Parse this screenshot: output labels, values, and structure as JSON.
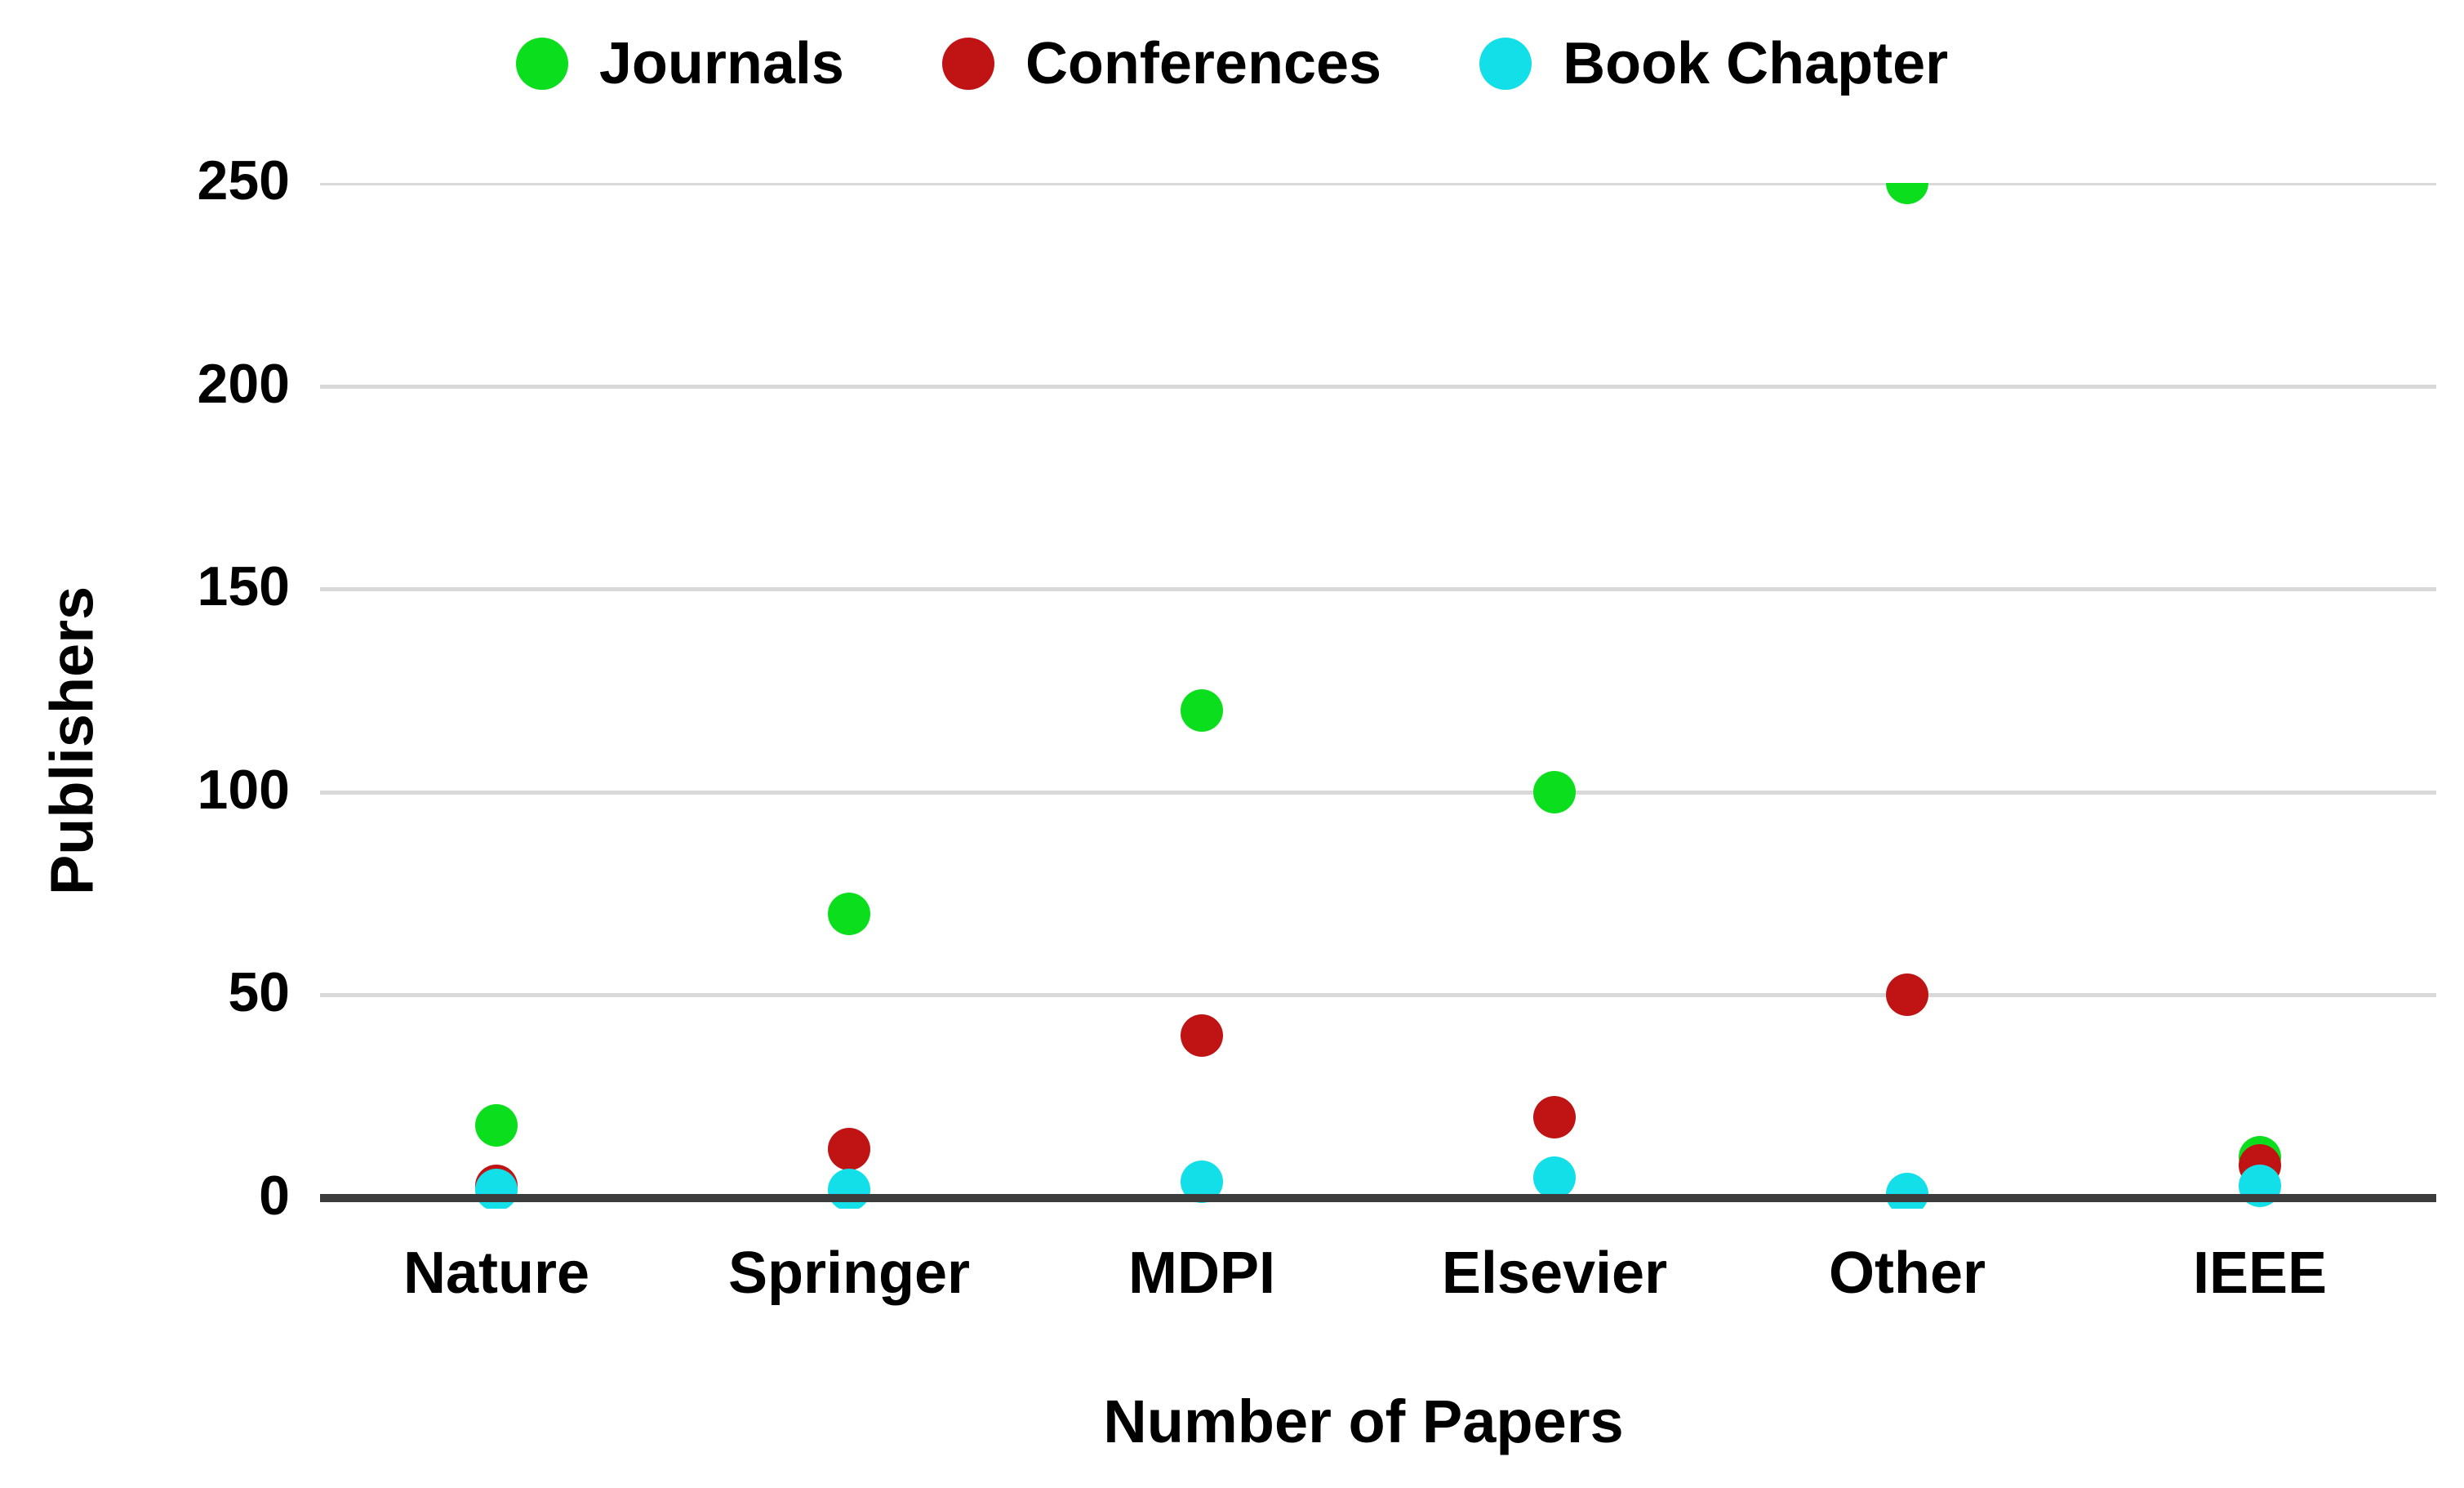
{
  "chart_data": {
    "type": "scatter",
    "title": "",
    "xlabel": "Number of Papers",
    "ylabel": "Publishers",
    "categories": [
      "Nature",
      "Springer",
      "MDPI",
      "Elsevier",
      "Other",
      "IEEE"
    ],
    "series": [
      {
        "name": "Journals",
        "color": "#0bdf1d",
        "values": [
          18,
          70,
          120,
          100,
          250,
          10
        ]
      },
      {
        "name": "Conferences",
        "color": "#c01414",
        "values": [
          3,
          12,
          40,
          20,
          50,
          8
        ]
      },
      {
        "name": "Book Chapter",
        "color": "#12dfe8",
        "values": [
          2,
          2,
          4,
          5,
          1,
          3
        ]
      }
    ],
    "y_ticks": [
      0,
      50,
      100,
      150,
      200,
      250
    ],
    "ylim": [
      0,
      250
    ],
    "grid": "horizontal",
    "legend_position": "top",
    "colors": {
      "gridline": "#d9d9d9",
      "axis": "#3c3c3c",
      "text": "#000000",
      "background": "#ffffff"
    }
  }
}
